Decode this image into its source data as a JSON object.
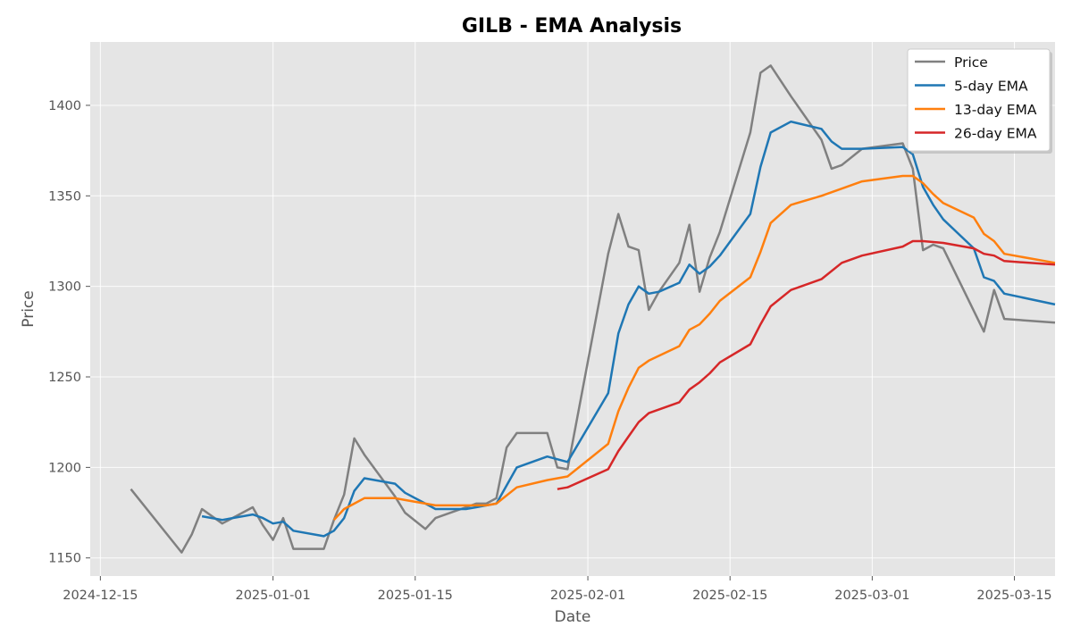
{
  "chart_data": {
    "type": "line",
    "title": "GILB - EMA Analysis",
    "xlabel": "Date",
    "ylabel": "Price",
    "grid": true,
    "legend_position": "top-right",
    "xlim": [
      "2024-12-14",
      "2025-03-19"
    ],
    "ylim": [
      1140,
      1435
    ],
    "x_ticks": [
      "2024-12-15",
      "2025-01-01",
      "2025-01-15",
      "2025-02-01",
      "2025-02-15",
      "2025-03-01",
      "2025-03-15"
    ],
    "y_ticks": [
      1150,
      1200,
      1250,
      1300,
      1350,
      1400
    ],
    "series": [
      {
        "name": "Price",
        "color": "#808080",
        "points": [
          [
            "2024-12-18",
            1188
          ],
          [
            "2024-12-23",
            1153
          ],
          [
            "2024-12-24",
            1163
          ],
          [
            "2024-12-25",
            1177
          ],
          [
            "2024-12-27",
            1169
          ],
          [
            "2024-12-30",
            1178
          ],
          [
            "2024-12-31",
            1168
          ],
          [
            "2025-01-01",
            1160
          ],
          [
            "2025-01-02",
            1172
          ],
          [
            "2025-01-03",
            1155
          ],
          [
            "2025-01-06",
            1155
          ],
          [
            "2025-01-07",
            1171
          ],
          [
            "2025-01-08",
            1185
          ],
          [
            "2025-01-09",
            1216
          ],
          [
            "2025-01-10",
            1207
          ],
          [
            "2025-01-13",
            1184
          ],
          [
            "2025-01-14",
            1175
          ],
          [
            "2025-01-16",
            1166
          ],
          [
            "2025-01-17",
            1172
          ],
          [
            "2025-01-20",
            1178
          ],
          [
            "2025-01-21",
            1180
          ],
          [
            "2025-01-22",
            1180
          ],
          [
            "2025-01-23",
            1183
          ],
          [
            "2025-01-24",
            1211
          ],
          [
            "2025-01-25",
            1219
          ],
          [
            "2025-01-28",
            1219
          ],
          [
            "2025-01-29",
            1200
          ],
          [
            "2025-01-30",
            1199
          ],
          [
            "2025-02-03",
            1318
          ],
          [
            "2025-02-04",
            1340
          ],
          [
            "2025-02-05",
            1322
          ],
          [
            "2025-02-06",
            1320
          ],
          [
            "2025-02-07",
            1287
          ],
          [
            "2025-02-08",
            1297
          ],
          [
            "2025-02-10",
            1313
          ],
          [
            "2025-02-11",
            1334
          ],
          [
            "2025-02-12",
            1297
          ],
          [
            "2025-02-13",
            1316
          ],
          [
            "2025-02-14",
            1330
          ],
          [
            "2025-02-17",
            1385
          ],
          [
            "2025-02-18",
            1418
          ],
          [
            "2025-02-19",
            1422
          ],
          [
            "2025-02-21",
            1405
          ],
          [
            "2025-02-24",
            1381
          ],
          [
            "2025-02-25",
            1365
          ],
          [
            "2025-02-26",
            1367
          ],
          [
            "2025-02-28",
            1376
          ],
          [
            "2025-03-04",
            1379
          ],
          [
            "2025-03-05",
            1365
          ],
          [
            "2025-03-06",
            1320
          ],
          [
            "2025-03-07",
            1323
          ],
          [
            "2025-03-08",
            1321
          ],
          [
            "2025-03-12",
            1275
          ],
          [
            "2025-03-13",
            1298
          ],
          [
            "2025-03-14",
            1282
          ],
          [
            "2025-03-19",
            1280
          ]
        ]
      },
      {
        "name": "5-day EMA",
        "color": "#1f77b4",
        "points": [
          [
            "2024-12-25",
            1173
          ],
          [
            "2024-12-27",
            1171
          ],
          [
            "2024-12-30",
            1174
          ],
          [
            "2024-12-31",
            1172
          ],
          [
            "2025-01-01",
            1169
          ],
          [
            "2025-01-02",
            1170
          ],
          [
            "2025-01-03",
            1165
          ],
          [
            "2025-01-06",
            1162
          ],
          [
            "2025-01-07",
            1165
          ],
          [
            "2025-01-08",
            1172
          ],
          [
            "2025-01-09",
            1187
          ],
          [
            "2025-01-10",
            1194
          ],
          [
            "2025-01-13",
            1191
          ],
          [
            "2025-01-14",
            1186
          ],
          [
            "2025-01-16",
            1180
          ],
          [
            "2025-01-17",
            1177
          ],
          [
            "2025-01-20",
            1177
          ],
          [
            "2025-01-21",
            1178
          ],
          [
            "2025-01-22",
            1179
          ],
          [
            "2025-01-23",
            1180
          ],
          [
            "2025-01-24",
            1190
          ],
          [
            "2025-01-25",
            1200
          ],
          [
            "2025-01-28",
            1206
          ],
          [
            "2025-01-30",
            1203
          ],
          [
            "2025-02-03",
            1241
          ],
          [
            "2025-02-04",
            1274
          ],
          [
            "2025-02-05",
            1290
          ],
          [
            "2025-02-06",
            1300
          ],
          [
            "2025-02-07",
            1296
          ],
          [
            "2025-02-08",
            1297
          ],
          [
            "2025-02-10",
            1302
          ],
          [
            "2025-02-11",
            1312
          ],
          [
            "2025-02-12",
            1307
          ],
          [
            "2025-02-13",
            1311
          ],
          [
            "2025-02-14",
            1317
          ],
          [
            "2025-02-17",
            1340
          ],
          [
            "2025-02-18",
            1366
          ],
          [
            "2025-02-19",
            1385
          ],
          [
            "2025-02-21",
            1391
          ],
          [
            "2025-02-24",
            1387
          ],
          [
            "2025-02-25",
            1380
          ],
          [
            "2025-02-26",
            1376
          ],
          [
            "2025-02-28",
            1376
          ],
          [
            "2025-03-04",
            1377
          ],
          [
            "2025-03-05",
            1373
          ],
          [
            "2025-03-06",
            1355
          ],
          [
            "2025-03-07",
            1345
          ],
          [
            "2025-03-08",
            1337
          ],
          [
            "2025-03-11",
            1321
          ],
          [
            "2025-03-12",
            1305
          ],
          [
            "2025-03-13",
            1303
          ],
          [
            "2025-03-14",
            1296
          ],
          [
            "2025-03-19",
            1290
          ]
        ]
      },
      {
        "name": "13-day EMA",
        "color": "#ff7f0e",
        "points": [
          [
            "2025-01-07",
            1171
          ],
          [
            "2025-01-08",
            1177
          ],
          [
            "2025-01-09",
            1180
          ],
          [
            "2025-01-10",
            1183
          ],
          [
            "2025-01-13",
            1183
          ],
          [
            "2025-01-14",
            1182
          ],
          [
            "2025-01-16",
            1180
          ],
          [
            "2025-01-17",
            1179
          ],
          [
            "2025-01-20",
            1179
          ],
          [
            "2025-01-21",
            1179
          ],
          [
            "2025-01-22",
            1179
          ],
          [
            "2025-01-23",
            1180
          ],
          [
            "2025-01-25",
            1189
          ],
          [
            "2025-01-28",
            1193
          ],
          [
            "2025-01-30",
            1195
          ],
          [
            "2025-02-03",
            1213
          ],
          [
            "2025-02-04",
            1231
          ],
          [
            "2025-02-05",
            1244
          ],
          [
            "2025-02-06",
            1255
          ],
          [
            "2025-02-07",
            1259
          ],
          [
            "2025-02-10",
            1267
          ],
          [
            "2025-02-11",
            1276
          ],
          [
            "2025-02-12",
            1279
          ],
          [
            "2025-02-13",
            1285
          ],
          [
            "2025-02-14",
            1292
          ],
          [
            "2025-02-17",
            1305
          ],
          [
            "2025-02-18",
            1319
          ],
          [
            "2025-02-19",
            1335
          ],
          [
            "2025-02-21",
            1345
          ],
          [
            "2025-02-24",
            1350
          ],
          [
            "2025-02-26",
            1354
          ],
          [
            "2025-02-28",
            1358
          ],
          [
            "2025-03-04",
            1361
          ],
          [
            "2025-03-05",
            1361
          ],
          [
            "2025-03-06",
            1357
          ],
          [
            "2025-03-07",
            1351
          ],
          [
            "2025-03-08",
            1346
          ],
          [
            "2025-03-11",
            1338
          ],
          [
            "2025-03-12",
            1329
          ],
          [
            "2025-03-13",
            1325
          ],
          [
            "2025-03-14",
            1318
          ],
          [
            "2025-03-19",
            1313
          ]
        ]
      },
      {
        "name": "26-day EMA",
        "color": "#d62728",
        "points": [
          [
            "2025-01-29",
            1188
          ],
          [
            "2025-01-30",
            1189
          ],
          [
            "2025-02-03",
            1199
          ],
          [
            "2025-02-04",
            1209
          ],
          [
            "2025-02-05",
            1217
          ],
          [
            "2025-02-06",
            1225
          ],
          [
            "2025-02-07",
            1230
          ],
          [
            "2025-02-10",
            1236
          ],
          [
            "2025-02-11",
            1243
          ],
          [
            "2025-02-12",
            1247
          ],
          [
            "2025-02-13",
            1252
          ],
          [
            "2025-02-14",
            1258
          ],
          [
            "2025-02-17",
            1268
          ],
          [
            "2025-02-18",
            1279
          ],
          [
            "2025-02-19",
            1289
          ],
          [
            "2025-02-21",
            1298
          ],
          [
            "2025-02-24",
            1304
          ],
          [
            "2025-02-26",
            1313
          ],
          [
            "2025-02-28",
            1317
          ],
          [
            "2025-03-04",
            1322
          ],
          [
            "2025-03-05",
            1325
          ],
          [
            "2025-03-06",
            1325
          ],
          [
            "2025-03-08",
            1324
          ],
          [
            "2025-03-11",
            1321
          ],
          [
            "2025-03-12",
            1318
          ],
          [
            "2025-03-13",
            1317
          ],
          [
            "2025-03-14",
            1314
          ],
          [
            "2025-03-19",
            1312
          ]
        ]
      }
    ]
  }
}
